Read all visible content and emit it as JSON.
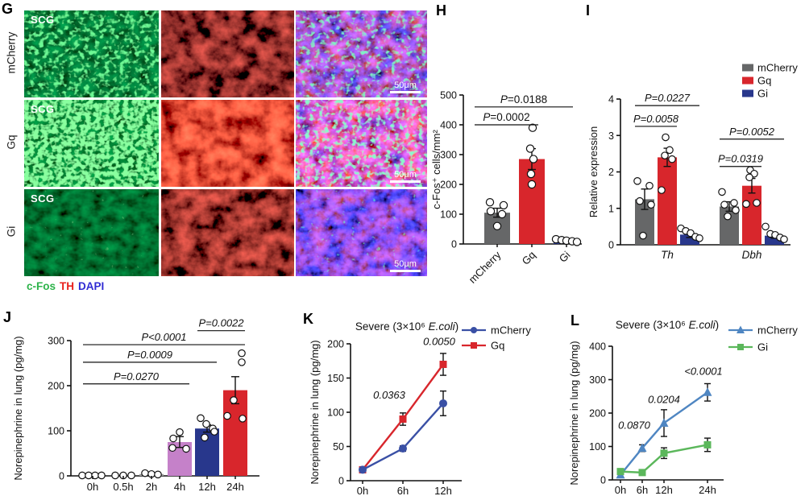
{
  "figure": {
    "panel_g": {
      "letter": "G",
      "rows": [
        {
          "label": "mCherry"
        },
        {
          "label": "Gq"
        },
        {
          "label": "Gi"
        }
      ],
      "tissue_label": "SCG",
      "scale_bar_label": "50μm",
      "caption": [
        {
          "text": "c-Fos",
          "color": "#2db34a"
        },
        {
          "text": "TH",
          "color": "#e8211d"
        },
        {
          "text": "DAPI",
          "color": "#2f2bd3"
        }
      ]
    },
    "panel_letters": {
      "h": "H",
      "i": "I",
      "j": "J",
      "k": "K",
      "l": "L"
    }
  },
  "chart_data": [
    {
      "panel": "H",
      "type": "bar",
      "ylabel": "c-Fos⁺ cells/mm²",
      "ylim": [
        0,
        500
      ],
      "yticks": [
        0,
        100,
        200,
        300,
        400,
        500
      ],
      "categories": [
        "mCherry",
        "Gq",
        "Gi"
      ],
      "values": [
        105,
        285,
        10
      ],
      "errors": [
        15,
        35,
        4
      ],
      "colors": [
        "#666768",
        "#d8262c",
        "#28378c"
      ],
      "points": [
        [
          140,
          130,
          110,
          100,
          60
        ],
        [
          390,
          320,
          285,
          235,
          200
        ],
        [
          16,
          13,
          11,
          9,
          7
        ]
      ],
      "significance": [
        {
          "label": "P=0.0002",
          "from": 0,
          "to": 1,
          "y": 400
        },
        {
          "label": "P=0.0188",
          "from": 0,
          "to": 2,
          "y": 460
        }
      ]
    },
    {
      "panel": "I",
      "type": "grouped_bar",
      "ylabel": "Relative expression",
      "ylim": [
        0,
        4
      ],
      "yticks": [
        0,
        1,
        2,
        3,
        4
      ],
      "groups": [
        "Th",
        "Dbh"
      ],
      "series": [
        {
          "name": "mCherry",
          "color": "#666768",
          "values": [
            1.25,
            1.05
          ],
          "errors": [
            0.28,
            0.13
          ],
          "points": [
            [
              1.75,
              1.62,
              1.2,
              1.1,
              0.25
            ],
            [
              1.45,
              1.15,
              1.1,
              0.95,
              0.78
            ]
          ]
        },
        {
          "name": "Gq",
          "color": "#d8262c",
          "values": [
            2.4,
            1.62
          ],
          "errors": [
            0.25,
            0.2
          ],
          "points": [
            [
              2.95,
              2.6,
              2.45,
              2.35,
              1.5
            ],
            [
              2.05,
              1.95,
              1.85,
              1.15,
              1.12
            ]
          ]
        },
        {
          "name": "Gi",
          "color": "#28378c",
          "values": [
            0.28,
            0.25
          ],
          "errors": [
            0.08,
            0.07
          ],
          "points": [
            [
              0.45,
              0.38,
              0.32,
              0.22,
              0.18
            ],
            [
              0.5,
              0.3,
              0.27,
              0.2,
              0.15
            ]
          ]
        }
      ],
      "significance": [
        {
          "group": 0,
          "label": "P=0.0058",
          "from": 0,
          "to": 1,
          "y": 3.25
        },
        {
          "group": 0,
          "label": "P=0.0227",
          "from": 0,
          "to": 2,
          "y": 3.82
        },
        {
          "group": 1,
          "label": "P=0.0319",
          "from": 0,
          "to": 1,
          "y": 2.15
        },
        {
          "group": 1,
          "label": "P=0.0052",
          "from": 0,
          "to": 2,
          "y": 2.9
        }
      ]
    },
    {
      "panel": "J",
      "type": "bar",
      "ylabel": "Norepinephrine in lung (pg/mg)",
      "ylim": [
        0,
        300
      ],
      "yticks": [
        0,
        100,
        200,
        300
      ],
      "categories": [
        "0h",
        "0.5h",
        "2h",
        "4h",
        "12h",
        "24h"
      ],
      "values": [
        1,
        1,
        4,
        75,
        105,
        190
      ],
      "errors": [
        0.5,
        0.5,
        2,
        12,
        8,
        30
      ],
      "colors": [
        "#9a9a9a",
        "#9a9a9a",
        "#9a9a9a",
        "#c581c9",
        "#28378c",
        "#d8262c"
      ],
      "points": [
        [
          1,
          1,
          1,
          1
        ],
        [
          1,
          1,
          1
        ],
        [
          6,
          4,
          3
        ],
        [
          97,
          83,
          62,
          60
        ],
        [
          128,
          115,
          105,
          98,
          85
        ],
        [
          272,
          252,
          168,
          133,
          127
        ]
      ],
      "significance": [
        {
          "label": "P=0.0270",
          "from": 0,
          "to": 3,
          "y": 204
        },
        {
          "label": "P=0.0009",
          "from": 0,
          "to": 4,
          "y": 252
        },
        {
          "label": "P<0.0001",
          "from": 0,
          "to": 5,
          "y": 291
        },
        {
          "label": "P=0.0022",
          "from": 4,
          "to": 5,
          "y": 322
        }
      ]
    },
    {
      "panel": "K",
      "type": "line",
      "title": {
        "pre": "Severe (3×10⁶ ",
        "italic": "E.coli",
        "post": ")"
      },
      "ylabel": "Norepinephrine in lung (pg/mg)",
      "ylim": [
        0,
        200
      ],
      "yticks": [
        0,
        50,
        100,
        150,
        200
      ],
      "x_labels": [
        "0h",
        "6h",
        "12h"
      ],
      "x_values": [
        0,
        6,
        12
      ],
      "series": [
        {
          "name": "mCherry",
          "color": "#3a50a5",
          "marker": "circle",
          "values": [
            16,
            47,
            113
          ],
          "errors": [
            3,
            4,
            18
          ]
        },
        {
          "name": "Gq",
          "color": "#d8262c",
          "marker": "square",
          "values": [
            16,
            90,
            170
          ],
          "errors": [
            3,
            9,
            16
          ]
        }
      ],
      "annotations": [
        {
          "text": "0.0363",
          "x": 6,
          "y": 120,
          "dx": -17
        },
        {
          "text": "0.0050",
          "x": 12,
          "y": 198,
          "dx": -5
        }
      ]
    },
    {
      "panel": "L",
      "type": "line",
      "title": {
        "pre": "Severe (3×10⁶ ",
        "italic": "E.coli",
        "post": ")"
      },
      "ylabel": "Norepinephrine in lung (pg/mg)",
      "ylim": [
        0,
        400
      ],
      "yticks": [
        0,
        100,
        200,
        300,
        400
      ],
      "x_labels": [
        "0h",
        "6h",
        "12h",
        "24h"
      ],
      "x_values": [
        0,
        6,
        12,
        24
      ],
      "series": [
        {
          "name": "mCherry",
          "color": "#4f86c2",
          "marker": "triangle",
          "values": [
            15,
            95,
            170,
            262
          ],
          "errors": [
            5,
            10,
            40,
            26
          ]
        },
        {
          "name": "Gi",
          "color": "#5bb75b",
          "marker": "square",
          "values": [
            25,
            22,
            80,
            105
          ],
          "errors": [
            6,
            5,
            16,
            20
          ]
        }
      ],
      "annotations": [
        {
          "text": "0.0870",
          "x": 6,
          "y": 153,
          "dx": -10
        },
        {
          "text": "0.0204",
          "x": 12,
          "y": 230,
          "dx": 0
        },
        {
          "text": "<0.0001",
          "x": 24,
          "y": 315,
          "dx": -5
        }
      ]
    }
  ]
}
